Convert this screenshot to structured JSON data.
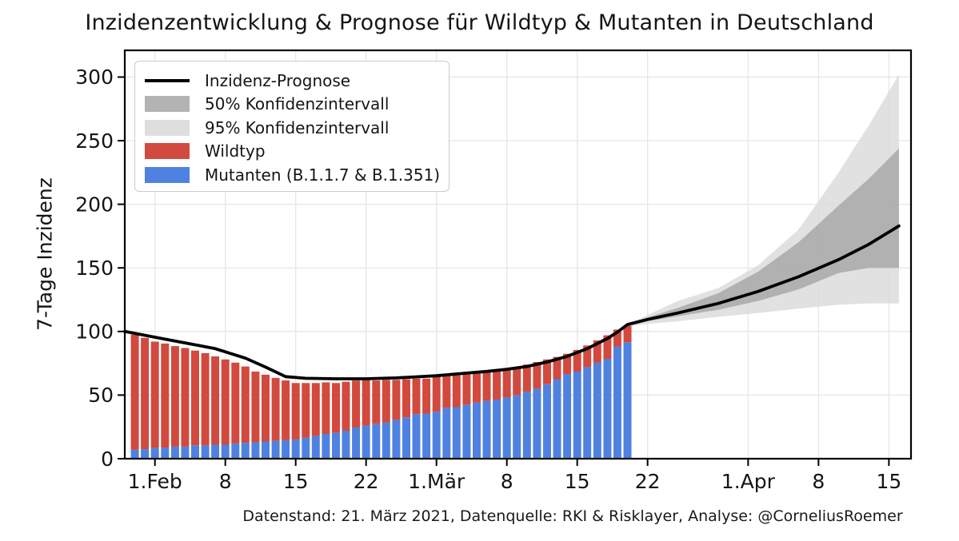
{
  "figure": {
    "title": "Inzidenzentwicklung & Prognose für Wildtyp & Mutanten in Deutschland",
    "source_note": "Datenstand: 21. März 2021, Datenquelle: RKI & Risklayer, Analyse: @CorneliusRoemer"
  },
  "chart_data": {
    "type": "bar",
    "overlays": [
      "line",
      "area"
    ],
    "title": "Inzidenzentwicklung & Prognose für Wildtyp & Mutanten in Deutschland",
    "xlabel": "",
    "ylabel": "7-Tage Inzidenz",
    "ylim": [
      0,
      321
    ],
    "x_axis_days_from": "2021-01-29",
    "xlim_days": [
      0,
      78.2
    ],
    "grid": true,
    "y_ticks": [
      0,
      50,
      100,
      150,
      200,
      250,
      300
    ],
    "x_ticks": [
      {
        "label": "1.Feb",
        "day": 3
      },
      {
        "label": "8",
        "day": 10
      },
      {
        "label": "15",
        "day": 17
      },
      {
        "label": "22",
        "day": 24
      },
      {
        "label": "1.Mär",
        "day": 31
      },
      {
        "label": "8",
        "day": 38
      },
      {
        "label": "15",
        "day": 45
      },
      {
        "label": "22",
        "day": 52
      },
      {
        "label": "1.Apr",
        "day": 62
      },
      {
        "label": "8",
        "day": 69
      },
      {
        "label": "15",
        "day": 76
      }
    ],
    "bars": {
      "stacking": "mutanten unten, wildtyp oben",
      "dates": [
        "2021-01-30",
        "2021-01-31",
        "2021-02-01",
        "2021-02-02",
        "2021-02-03",
        "2021-02-04",
        "2021-02-05",
        "2021-02-06",
        "2021-02-07",
        "2021-02-08",
        "2021-02-09",
        "2021-02-10",
        "2021-02-11",
        "2021-02-12",
        "2021-02-13",
        "2021-02-14",
        "2021-02-15",
        "2021-02-16",
        "2021-02-17",
        "2021-02-18",
        "2021-02-19",
        "2021-02-20",
        "2021-02-21",
        "2021-02-22",
        "2021-02-23",
        "2021-02-24",
        "2021-02-25",
        "2021-02-26",
        "2021-02-27",
        "2021-02-28",
        "2021-03-01",
        "2021-03-02",
        "2021-03-03",
        "2021-03-04",
        "2021-03-05",
        "2021-03-06",
        "2021-03-07",
        "2021-03-08",
        "2021-03-09",
        "2021-03-10",
        "2021-03-11",
        "2021-03-12",
        "2021-03-13",
        "2021-03-14",
        "2021-03-15",
        "2021-03-16",
        "2021-03-17",
        "2021-03-18",
        "2021-03-19",
        "2021-03-20"
      ],
      "mutanten": [
        7,
        7.5,
        8.5,
        8.5,
        9.5,
        9.5,
        10.5,
        10.5,
        11,
        11,
        12,
        12.5,
        13,
        13.5,
        14,
        14.5,
        15,
        16.5,
        18,
        19.5,
        20.5,
        22,
        24.5,
        26,
        27.5,
        28.5,
        30.5,
        32.5,
        35,
        35.5,
        37,
        40,
        40.5,
        42.5,
        44,
        45.5,
        46.5,
        48,
        50,
        52.5,
        55,
        58.5,
        62.5,
        66.5,
        68.5,
        72,
        75.5,
        78.5,
        88,
        91.5
      ],
      "wildtyp": [
        90.5,
        87.5,
        83.5,
        82,
        79,
        77.5,
        74.5,
        72.5,
        69.5,
        67,
        63.5,
        60,
        55.5,
        52.5,
        49.5,
        47,
        44.5,
        43,
        41.5,
        40.5,
        39,
        38.5,
        37,
        36,
        34,
        33.5,
        31.5,
        30,
        28,
        27.5,
        27.5,
        25,
        25,
        24,
        23,
        22.5,
        22.5,
        22.5,
        22,
        21.5,
        21,
        19.5,
        17.5,
        16,
        17,
        17,
        17.5,
        18.5,
        13.5,
        13
      ]
    },
    "fit_line_day_value": [
      [
        0,
        100
      ],
      [
        3,
        95.5
      ],
      [
        6,
        91
      ],
      [
        9,
        86.5
      ],
      [
        12,
        79
      ],
      [
        14,
        72
      ],
      [
        16,
        64.5
      ],
      [
        18,
        63.2
      ],
      [
        21,
        62.8
      ],
      [
        24,
        62.8
      ],
      [
        27,
        63.5
      ],
      [
        31,
        65.2
      ],
      [
        34,
        67.3
      ],
      [
        36,
        68.6
      ],
      [
        38,
        70.3
      ],
      [
        40,
        72.5
      ],
      [
        42,
        76
      ],
      [
        44,
        80.5
      ],
      [
        46,
        86.5
      ],
      [
        48,
        94.5
      ],
      [
        49,
        99.5
      ],
      [
        50,
        105.5
      ]
    ],
    "forecast_line_day_value": [
      [
        50,
        105.5
      ],
      [
        52,
        109.5
      ],
      [
        55,
        114.5
      ],
      [
        59,
        122
      ],
      [
        63,
        131.5
      ],
      [
        67,
        143
      ],
      [
        71,
        156.5
      ],
      [
        74,
        168.5
      ],
      [
        77,
        183
      ]
    ],
    "ci50": {
      "upper": [
        [
          50.4,
          106.5
        ],
        [
          52,
          111
        ],
        [
          55,
          118.5
        ],
        [
          59,
          130
        ],
        [
          63,
          147
        ],
        [
          67,
          170
        ],
        [
          71,
          199
        ],
        [
          74,
          220
        ],
        [
          77,
          244
        ]
      ],
      "lower": [
        [
          50.4,
          105
        ],
        [
          52,
          108
        ],
        [
          55,
          112
        ],
        [
          59,
          117
        ],
        [
          63,
          124
        ],
        [
          67,
          133
        ],
        [
          71,
          146
        ],
        [
          74,
          150
        ],
        [
          77,
          150
        ]
      ]
    },
    "ci95": {
      "upper": [
        [
          50.4,
          107
        ],
        [
          52,
          113
        ],
        [
          55,
          124
        ],
        [
          59,
          134
        ],
        [
          63,
          152
        ],
        [
          67,
          180
        ],
        [
          71,
          225
        ],
        [
          74,
          262
        ],
        [
          77,
          302
        ]
      ],
      "lower": [
        [
          50.4,
          104
        ],
        [
          52,
          106
        ],
        [
          55,
          108
        ],
        [
          59,
          111.5
        ],
        [
          63,
          114.5
        ],
        [
          67,
          118
        ],
        [
          71,
          121
        ],
        [
          74,
          122
        ],
        [
          77,
          122
        ]
      ]
    },
    "legend": [
      {
        "label": "Inzidenz-Prognose",
        "type": "line",
        "color": "#000000"
      },
      {
        "label": "50% Konfidenzintervall",
        "type": "patch",
        "color": "#b3b3b3"
      },
      {
        "label": "95% Konfidenzintervall",
        "type": "patch",
        "color": "#dedede"
      },
      {
        "label": "Wildtyp",
        "type": "patch",
        "color": "#d2493e"
      },
      {
        "label": "Mutanten (B.1.1.7 & B.1.351)",
        "type": "patch",
        "color": "#4f82e0"
      }
    ],
    "colors": {
      "wildtyp": "#d2493e",
      "mutanten": "#4f82e0",
      "prognose_line": "#000000",
      "ci50_fill": "#a8a8a8",
      "ci95_fill": "#d9d9d9",
      "grid": "#e6e6e6",
      "spine": "#000000"
    }
  }
}
